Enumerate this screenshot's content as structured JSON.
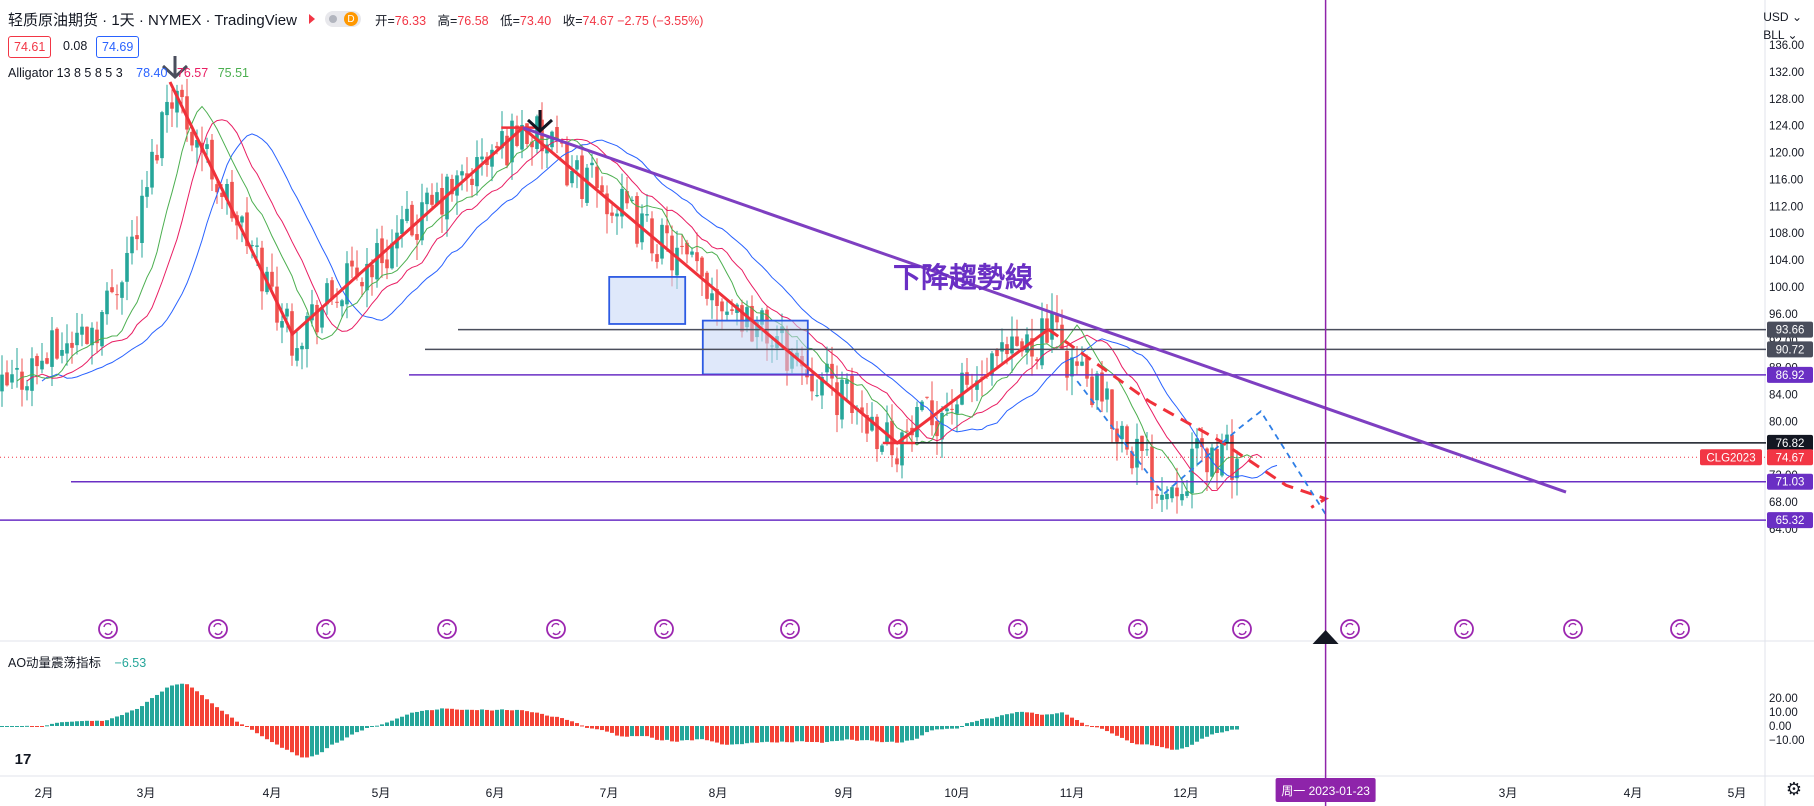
{
  "header": {
    "symbol_title": "轻质原油期货 · 1天 · NYMEX · TradingView",
    "toggle_letter": "D",
    "ohlc": [
      {
        "label": "开=",
        "value": "76.33"
      },
      {
        "label": "高=",
        "value": "76.58"
      },
      {
        "label": "低=",
        "value": "73.40"
      },
      {
        "label": "收=",
        "value": "74.67 −2.75 (−3.55%)"
      }
    ],
    "bid": "74.61",
    "spread": "0.08",
    "ask": "74.69"
  },
  "indicators": {
    "alligator": {
      "label": "Alligator 13 8 5 8 5 3",
      "jaw": "78.40",
      "teeth": "76.57",
      "lips": "75.51",
      "jaw_color": "#2962ff",
      "teeth_color": "#e91e63",
      "lips_color": "#4caf50"
    },
    "ao": {
      "label": "AO动量震荡指标",
      "value": "−6.53",
      "up_color": "#26a69a",
      "down_color": "#f44336"
    }
  },
  "currency": {
    "ccy": "USD",
    "unit": "BLL"
  },
  "annotation": {
    "text": "下降趨勢線",
    "color": "#6a2fc4"
  },
  "crosshair": {
    "label": "周一  2023-01-23"
  },
  "colors": {
    "bull": "#26a69a",
    "bear": "#ef5350",
    "trend": "#7e3fc1",
    "zigzag": "#f0313a",
    "proj_blue": "#2f7fe6",
    "box_fill": "#c5d6f5",
    "box_stroke": "#2d5be3"
  },
  "chart_data": {
    "type": "candlestick",
    "symbol": "CLG2023",
    "last_price": 74.67,
    "y_axis": {
      "ticks": [
        "136.00",
        "132.00",
        "128.00",
        "124.00",
        "120.00",
        "116.00",
        "112.00",
        "108.00",
        "104.00",
        "100.00",
        "96.00",
        "92.00",
        "88.00",
        "84.00",
        "80.00",
        "76.00",
        "72.00",
        "68.00",
        "64.00"
      ],
      "range": [
        64,
        136
      ]
    },
    "x_axis": {
      "ticks": [
        "2月",
        "3月",
        "4月",
        "5月",
        "6月",
        "7月",
        "8月",
        "9月",
        "10月",
        "11月",
        "12月",
        "2023",
        "3月",
        "4月",
        "5月"
      ]
    },
    "horizontal_levels": [
      {
        "label": "93.66",
        "color": "#4a4e5c"
      },
      {
        "label": "90.72",
        "color": "#4a4e5c"
      },
      {
        "label": "86.92",
        "color": "#6a2fc4"
      },
      {
        "label": "76.82",
        "color": "#131722"
      },
      {
        "label": "71.03",
        "color": "#6a2fc4"
      },
      {
        "label": "65.32",
        "color": "#6a2fc4"
      }
    ],
    "last_price_label": "CLG2023",
    "last_price_value": "74.67",
    "ao_axis": {
      "ticks": [
        "20.00",
        "10.00",
        "0.00",
        "−10.00"
      ],
      "range": [
        -15,
        25
      ]
    },
    "key_points": [
      {
        "date": "2022-03-08",
        "price": 130.5
      },
      {
        "date": "2022-04-11",
        "price": 93.0
      },
      {
        "date": "2022-06-14",
        "price": 123.7
      },
      {
        "date": "2022-09-26",
        "price": 76.8
      },
      {
        "date": "2022-11-07",
        "price": 93.7
      },
      {
        "date": "2022-12-09",
        "price": 70.0
      },
      {
        "date": "2022-12-19",
        "price": 74.67
      }
    ]
  }
}
